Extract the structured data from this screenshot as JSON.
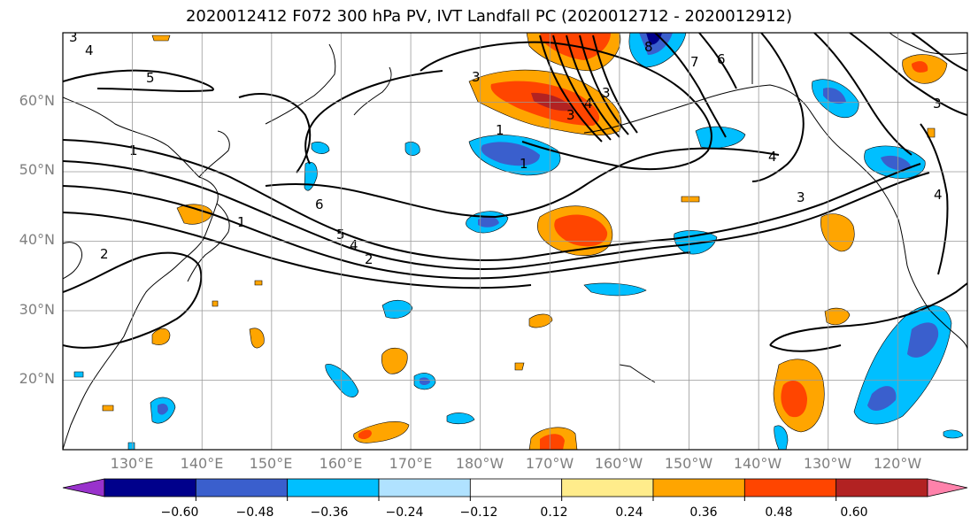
{
  "title": "2020012412 F072 300 hPa PV, IVT Landfall PC (2020012712 - 2020012912)",
  "map": {
    "lat_labels": [
      "60°N",
      "50°N",
      "40°N",
      "30°N",
      "20°N"
    ],
    "lon_labels": [
      "130°E",
      "140°E",
      "150°E",
      "160°E",
      "170°E",
      "180°W",
      "170°W",
      "160°W",
      "150°W",
      "140°W",
      "130°W",
      "120°W"
    ],
    "extent": {
      "lon_min": 120,
      "lon_max": 250,
      "lat_min": 10,
      "lat_max": 70
    },
    "grid": true,
    "contour_labels": [
      "4",
      "5",
      "3",
      "3",
      "1",
      "1",
      "4",
      "1",
      "2",
      "6",
      "5",
      "4",
      "2",
      "1",
      "3",
      "3",
      "6",
      "7",
      "8",
      "4",
      "3",
      "4",
      "3"
    ]
  },
  "colorbar": {
    "ticks": [
      "−0.60",
      "−0.48",
      "−0.36",
      "−0.24",
      "−0.12",
      "0.12",
      "0.24",
      "0.36",
      "0.48",
      "0.60"
    ],
    "colors": [
      "#9932cc",
      "#00008b",
      "#3a5fcd",
      "#00bfff",
      "#b0e2ff",
      "#ffffff",
      "#ffec8b",
      "#ffa500",
      "#ff4500",
      "#b22222",
      "#ff82ab"
    ],
    "extend": "both"
  }
}
